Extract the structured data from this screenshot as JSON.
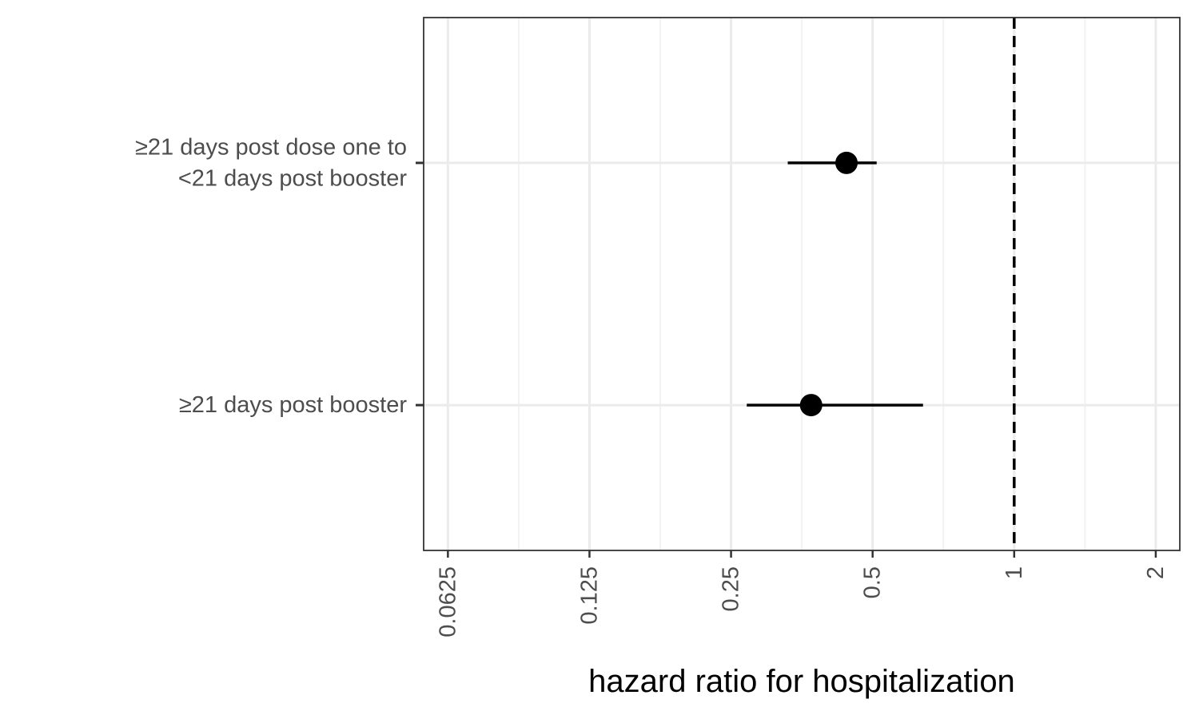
{
  "chart_data": {
    "type": "forest",
    "title": "",
    "xlabel": "hazard ratio for hospitalization",
    "ylabel": "",
    "x_scale": "log2",
    "xlim": [
      0.0555,
      2.25
    ],
    "x_ticks": [
      0.0625,
      0.125,
      0.25,
      0.5,
      1,
      2
    ],
    "x_tick_labels": [
      "0.0625",
      "0.125",
      "0.25",
      "0.5",
      "1",
      "2"
    ],
    "reference_line": 1,
    "grid": true,
    "rows": [
      {
        "label_lines": [
          "≥21 days post dose one to",
          "<21 days post booster"
        ],
        "estimate": 0.44,
        "ci_low": 0.33,
        "ci_high": 0.51
      },
      {
        "label_lines": [
          "≥21 days post booster"
        ],
        "estimate": 0.37,
        "ci_low": 0.27,
        "ci_high": 0.64
      }
    ],
    "colors": {
      "marker": "#000000",
      "panel_border": "#333333",
      "grid_major": "#ebebeb",
      "grid_minor": "#f2f2f2",
      "tick_text": "#4d4d4d"
    }
  }
}
